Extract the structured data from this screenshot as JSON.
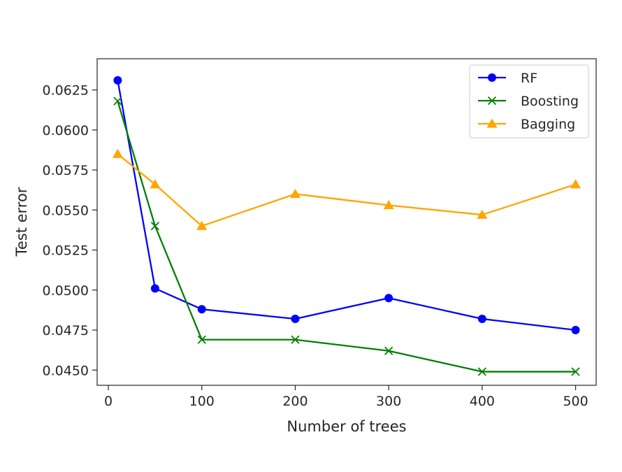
{
  "chart_data": {
    "type": "line",
    "title": "",
    "xlabel": "Number of trees",
    "ylabel": "Test error",
    "xlim": [
      -12,
      522
    ],
    "ylim": [
      0.04405,
      0.06445
    ],
    "x_ticks": [
      0,
      100,
      200,
      300,
      400,
      500
    ],
    "x_tick_labels": [
      "0",
      "100",
      "200",
      "300",
      "400",
      "500"
    ],
    "y_ticks": [
      0.045,
      0.0475,
      0.05,
      0.0525,
      0.055,
      0.0575,
      0.06,
      0.0625
    ],
    "y_tick_labels": [
      "0.0450",
      "0.0475",
      "0.0500",
      "0.0525",
      "0.0550",
      "0.0575",
      "0.0600",
      "0.0625"
    ],
    "grid": false,
    "legend_position": "top-right",
    "x": [
      10,
      50,
      100,
      200,
      300,
      400,
      500
    ],
    "series": [
      {
        "name": "RF",
        "color": "#0000ff",
        "marker": "circle",
        "values": [
          0.0631,
          0.0501,
          0.0488,
          0.0482,
          0.0495,
          0.0482,
          0.0475
        ]
      },
      {
        "name": "Boosting",
        "color": "#008000",
        "marker": "x",
        "values": [
          0.0618,
          0.054,
          0.0469,
          0.0469,
          0.0462,
          0.0449,
          0.0449
        ]
      },
      {
        "name": "Bagging",
        "color": "#ffa500",
        "marker": "triangle",
        "values": [
          0.0585,
          0.0566,
          0.054,
          0.056,
          0.0553,
          0.0547,
          0.0566
        ]
      }
    ]
  }
}
